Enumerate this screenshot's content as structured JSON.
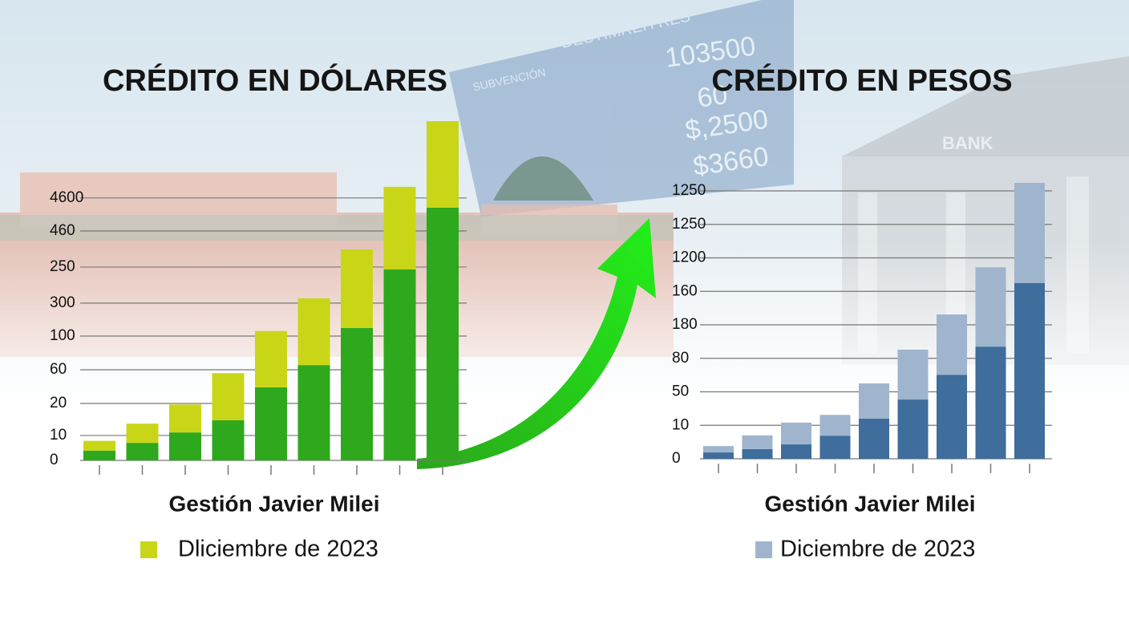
{
  "chart_data": [
    {
      "type": "bar",
      "stacked": true,
      "title": "CRÉDITO EN DÓLARES",
      "x_label": "Gestión Javier Milei",
      "categories": [
        null,
        null,
        null,
        null,
        null,
        null,
        null,
        null,
        null
      ],
      "series": [
        {
          "color": "#2ea81d",
          "values": [
            0.29,
            0.52,
            0.83,
            1.19,
            2.17,
            2.83,
            3.93,
            5.67,
            7.5
          ]
        },
        {
          "name": "Dliciembre de 2023",
          "color": "#c9d617",
          "values": [
            0.29,
            0.57,
            0.83,
            1.4,
            1.67,
            1.98,
            2.33,
            2.45,
            2.57
          ]
        }
      ],
      "ylim": [
        0,
        10.1
      ],
      "yticks": [
        0,
        {
          "value": 0.74,
          "label": "10"
        },
        {
          "value": 1.69,
          "label": "20"
        },
        {
          "value": 2.69,
          "label": "60"
        },
        {
          "value": 3.69,
          "label": "100"
        },
        {
          "value": 4.67,
          "label": "300"
        },
        {
          "value": 5.74,
          "label": "250"
        },
        {
          "value": 6.81,
          "label": "460"
        },
        {
          "value": 7.79,
          "label": "4600"
        }
      ],
      "grid": true
    },
    {
      "type": "bar",
      "stacked": true,
      "title": "CRÉDITO EN PESOS",
      "x_label": "Gestión Javier Milei",
      "categories": [
        null,
        null,
        null,
        null,
        null,
        null,
        null,
        null,
        null
      ],
      "series": [
        {
          "color": "#3f6d9c",
          "values": [
            0.19,
            0.29,
            0.43,
            0.69,
            1.2,
            1.77,
            2.51,
            3.35,
            5.25
          ]
        },
        {
          "name": "Diciembre de 2023",
          "color": "#9fb5cd",
          "values": [
            0.19,
            0.41,
            0.65,
            0.62,
            1.05,
            1.49,
            1.8,
            2.37,
            2.99
          ]
        }
      ],
      "ylim": [
        0,
        8.3
      ],
      "yticks": [
        0,
        {
          "value": 1,
          "label": "10"
        },
        {
          "value": 2,
          "label": "50"
        },
        {
          "value": 3,
          "label": "80"
        },
        {
          "value": 4,
          "label": "180"
        },
        {
          "value": 5,
          "label": "160"
        },
        {
          "value": 6,
          "label": "1200"
        },
        {
          "value": 7,
          "label": "1250"
        },
        {
          "value": 8,
          "label": "1250"
        }
      ],
      "grid": true
    }
  ],
  "background": {
    "board": [
      "SUBVENCIÓN",
      "DESTIMREH RES",
      "103500",
      "60",
      "$,2500",
      "$3660"
    ],
    "sign": "BANK"
  }
}
